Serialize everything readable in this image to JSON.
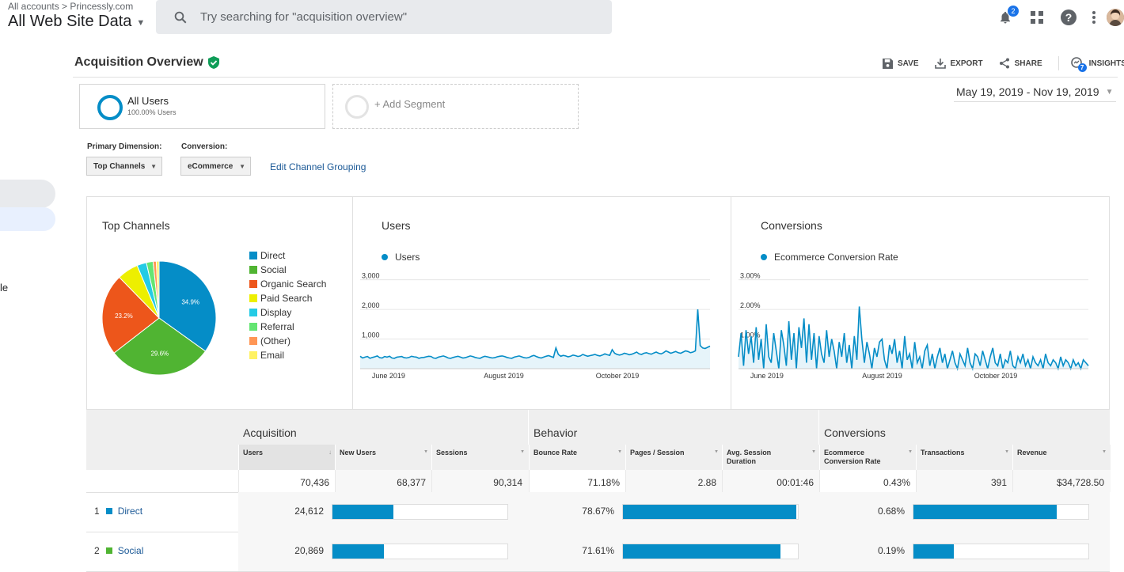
{
  "topbar": {
    "breadcrumb_root": "All accounts",
    "breadcrumb_sep": ">",
    "breadcrumb_account": "Princessly.com",
    "property": "All Web Site Data",
    "search_placeholder": "Try searching for \"acquisition overview\"",
    "notification_count": "2"
  },
  "leftnav": {
    "partial_text": "le"
  },
  "page": {
    "title": "Acquisition Overview",
    "actions": {
      "save": "SAVE",
      "export": "EXPORT",
      "share": "SHARE",
      "insights": "INSIGHTS",
      "insights_badge": "7"
    }
  },
  "segments": {
    "all_users": "All Users",
    "all_users_sub": "100.00% Users",
    "add_segment": "+ Add Segment"
  },
  "date_range": "May 19, 2019 - Nov 19, 2019",
  "controls": {
    "primary_dimension_label": "Primary Dimension:",
    "primary_dimension_value": "Top Channels",
    "conversion_label": "Conversion:",
    "conversion_value": "eCommerce",
    "edit_grouping": "Edit Channel Grouping"
  },
  "chart_data": [
    {
      "type": "pie",
      "title": "Top Channels",
      "categories": [
        "Direct",
        "Social",
        "Organic Search",
        "Paid Search",
        "Display",
        "Referral",
        "(Other)",
        "Email"
      ],
      "values": [
        34.9,
        29.6,
        23.2,
        6.0,
        2.7,
        1.9,
        0.9,
        0.8
      ],
      "slice_labels": [
        "34.9%",
        "29.6%",
        "23.2%",
        "",
        "",
        "",
        "",
        ""
      ],
      "colors": [
        "#058dc7",
        "#50b432",
        "#ed561b",
        "#edef00",
        "#24cbe5",
        "#64e572",
        "#ff9655",
        "#fff263"
      ]
    },
    {
      "type": "area",
      "title": "Users",
      "series": [
        {
          "name": "Users",
          "color": "#058dc7"
        }
      ],
      "y_ticks": [
        "3,000",
        "2,000",
        "1,000"
      ],
      "ylim": [
        0,
        3000
      ],
      "x_ticks": [
        "June 2019",
        "August 2019",
        "October 2019"
      ],
      "values": [
        420,
        360,
        390,
        410,
        350,
        380,
        400,
        430,
        370,
        360,
        410,
        390,
        420,
        360,
        350,
        390,
        400,
        410,
        370,
        360,
        380,
        420,
        400,
        390,
        350,
        370,
        380,
        400,
        420,
        410,
        360,
        350,
        390,
        410,
        430,
        400,
        360,
        350,
        380,
        400,
        420,
        390,
        360,
        370,
        400,
        430,
        410,
        380,
        360,
        350,
        390,
        420,
        400,
        380,
        360,
        370,
        400,
        420,
        430,
        410,
        380,
        360,
        350,
        390,
        410,
        430,
        400,
        370,
        360,
        380,
        420,
        450,
        410,
        380,
        360,
        390,
        420,
        440,
        410,
        380,
        700,
        480,
        420,
        450,
        430,
        400,
        420,
        460,
        440,
        410,
        430,
        480,
        450,
        420,
        440,
        460,
        480,
        450,
        430,
        460,
        500,
        470,
        450,
        640,
        520,
        480,
        460,
        480,
        520,
        500,
        470,
        490,
        520,
        560,
        500,
        480,
        520,
        540,
        510,
        490,
        530,
        560,
        520,
        500,
        540,
        600,
        560,
        520,
        550,
        580,
        540,
        520,
        560,
        600,
        580,
        540,
        560,
        600,
        2000,
        780,
        700,
        680,
        720,
        760
      ]
    },
    {
      "type": "area",
      "title": "Conversions",
      "series": [
        {
          "name": "Ecommerce Conversion Rate",
          "color": "#058dc7"
        }
      ],
      "y_ticks": [
        "3.00%",
        "2.00%",
        "1.00%"
      ],
      "ylim": [
        0,
        3.0
      ],
      "x_ticks": [
        "June 2019",
        "August 2019",
        "October 2019"
      ],
      "values": [
        0.4,
        1.2,
        0.1,
        1.3,
        0.5,
        1.1,
        0.2,
        1.4,
        0.3,
        1.0,
        0.0,
        1.5,
        0.4,
        0.2,
        1.2,
        0.6,
        0.0,
        1.3,
        0.8,
        0.1,
        1.6,
        0.3,
        1.2,
        0.0,
        1.4,
        0.7,
        1.7,
        0.2,
        1.5,
        0.3,
        1.2,
        0.0,
        1.1,
        0.5,
        0.2,
        1.3,
        0.4,
        1.0,
        0.6,
        0.0,
        0.9,
        0.4,
        1.2,
        0.2,
        0.8,
        0.0,
        1.1,
        0.3,
        2.1,
        1.0,
        0.2,
        0.9,
        0.5,
        0.0,
        0.7,
        0.4,
        0.9,
        1.0,
        0.3,
        0.0,
        0.8,
        0.5,
        1.0,
        0.2,
        0.6,
        0.0,
        1.1,
        0.3,
        0.5,
        0.0,
        0.9,
        0.2,
        0.4,
        0.0,
        0.6,
        0.8,
        0.1,
        0.5,
        0.0,
        0.4,
        0.7,
        0.2,
        0.5,
        0.0,
        0.3,
        0.6,
        0.2,
        0.0,
        0.5,
        0.3,
        0.1,
        0.7,
        0.2,
        0.0,
        0.5,
        0.4,
        0.1,
        0.6,
        0.3,
        0.0,
        0.4,
        0.7,
        0.2,
        0.1,
        0.5,
        0.0,
        0.3,
        0.2,
        0.6,
        0.1,
        0.0,
        0.4,
        0.2,
        0.5,
        0.1,
        0.3,
        0.0,
        0.4,
        0.2,
        0.1,
        0.3,
        0.0,
        0.5,
        0.2,
        0.1,
        0.3,
        0.2,
        0.0,
        0.4,
        0.1,
        0.3,
        0.2,
        0.0,
        0.3,
        0.1,
        0.2,
        0.0,
        0.3,
        0.2,
        0.1
      ]
    }
  ],
  "table": {
    "groups": [
      "Acquisition",
      "Behavior",
      "Conversions"
    ],
    "columns": [
      {
        "label": "Users",
        "sorted": true
      },
      {
        "label": "New Users"
      },
      {
        "label": "Sessions"
      },
      {
        "label": "Bounce Rate"
      },
      {
        "label": "Pages / Session"
      },
      {
        "label": "Avg. Session Duration"
      },
      {
        "label": "Ecommerce Conversion Rate"
      },
      {
        "label": "Transactions"
      },
      {
        "label": "Revenue"
      }
    ],
    "sort_indicator": "↓",
    "totals": [
      "70,436",
      "68,377",
      "90,314",
      "71.18%",
      "2.88",
      "00:01:46",
      "0.43%",
      "391",
      "$34,728.50"
    ],
    "rows": [
      {
        "index": "1",
        "channel": "Direct",
        "color": "#058dc7",
        "users": "24,612",
        "users_bar": 0.349,
        "bounce": "78.67%",
        "bounce_bar": 0.99,
        "conv": "0.68%",
        "conv_bar": 0.82
      },
      {
        "index": "2",
        "channel": "Social",
        "color": "#50b432",
        "users": "20,869",
        "users_bar": 0.296,
        "bounce": "71.61%",
        "bounce_bar": 0.9,
        "conv": "0.19%",
        "conv_bar": 0.23
      }
    ]
  }
}
